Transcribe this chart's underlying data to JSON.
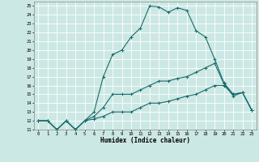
{
  "xlabel": "Humidex (Indice chaleur)",
  "bg_color": "#cce8e4",
  "grid_color": "#ffffff",
  "line_color": "#1a6b6b",
  "xlim": [
    -0.5,
    23.5
  ],
  "ylim": [
    11,
    25.5
  ],
  "yticks": [
    11,
    12,
    13,
    14,
    15,
    16,
    17,
    18,
    19,
    20,
    21,
    22,
    23,
    24,
    25
  ],
  "xticks": [
    0,
    1,
    2,
    3,
    4,
    5,
    6,
    7,
    8,
    9,
    10,
    11,
    12,
    13,
    14,
    15,
    16,
    17,
    18,
    19,
    20,
    21,
    22,
    23
  ],
  "line1_x": [
    0,
    1,
    2,
    3,
    4,
    5,
    6,
    7,
    8,
    9,
    10,
    11,
    12,
    13,
    14,
    15,
    16,
    17,
    18,
    19,
    20,
    21,
    22,
    23
  ],
  "line1_y": [
    12,
    12,
    11,
    12,
    11,
    12,
    13,
    17,
    19.5,
    20,
    21.5,
    22.5,
    25,
    24.9,
    24.3,
    24.8,
    24.5,
    22.2,
    21.5,
    19,
    16.3,
    15,
    15.2,
    13.2
  ],
  "line2_x": [
    0,
    1,
    2,
    3,
    4,
    5,
    6,
    7,
    8,
    9,
    10,
    11,
    12,
    13,
    14,
    15,
    16,
    17,
    18,
    19,
    20,
    21,
    22,
    23
  ],
  "line2_y": [
    12,
    12,
    11,
    12,
    11,
    12,
    12.5,
    13.5,
    15,
    15,
    15,
    15.5,
    16,
    16.5,
    16.5,
    16.8,
    17,
    17.5,
    18,
    18.5,
    16.2,
    14.8,
    15.2,
    13.2
  ],
  "line3_x": [
    0,
    1,
    2,
    3,
    4,
    5,
    6,
    7,
    8,
    9,
    10,
    11,
    12,
    13,
    14,
    15,
    16,
    17,
    18,
    19,
    20,
    21,
    22,
    23
  ],
  "line3_y": [
    12,
    12,
    11,
    12,
    11,
    12,
    12.2,
    12.5,
    13,
    13,
    13,
    13.5,
    14,
    14,
    14.2,
    14.5,
    14.8,
    15,
    15.5,
    16,
    16,
    15,
    15.2,
    13.2
  ]
}
